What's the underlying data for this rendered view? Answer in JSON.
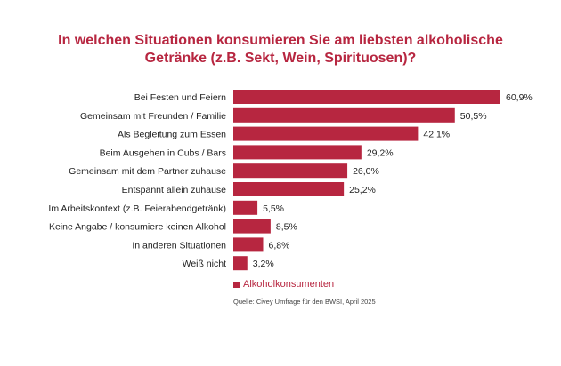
{
  "chart_data": {
    "type": "bar",
    "orientation": "horizontal",
    "title_line1": "In welchen Situationen konsumieren Sie am liebsten alkoholische",
    "title_line2": "Getränke  (z.B. Sekt, Wein, Spirituosen)?",
    "categories": [
      "Bei Festen und Feiern",
      "Gemeinsam mit Freunden / Familie",
      "Als Begleitung zum Essen",
      "Beim Ausgehen in Cubs / Bars",
      "Gemeinsam mit dem Partner zuhause",
      "Entspannt allein zuhause",
      "Im Arbeitskontext (z.B. Feierabendgetränk)",
      "Keine Angabe / konsumiere keinen Alkohol",
      "In anderen Situationen",
      "Weiß nicht"
    ],
    "values": [
      60.9,
      50.5,
      42.1,
      29.2,
      26.0,
      25.2,
      5.5,
      8.5,
      6.8,
      3.2
    ],
    "value_labels": [
      "60,9%",
      "50,5%",
      "42,1%",
      "29,2%",
      "26,0%",
      "25,2%",
      "5,5%",
      "8,5%",
      "6,8%",
      "3,2%"
    ],
    "series": [
      {
        "name": "Alkoholkonsumenten",
        "color": "#b72640"
      }
    ],
    "xlim": [
      0,
      60.9
    ],
    "legend": "bottom",
    "grid": false,
    "source": "Quelle: Civey Umfrage für den BWSI, April 2025"
  }
}
